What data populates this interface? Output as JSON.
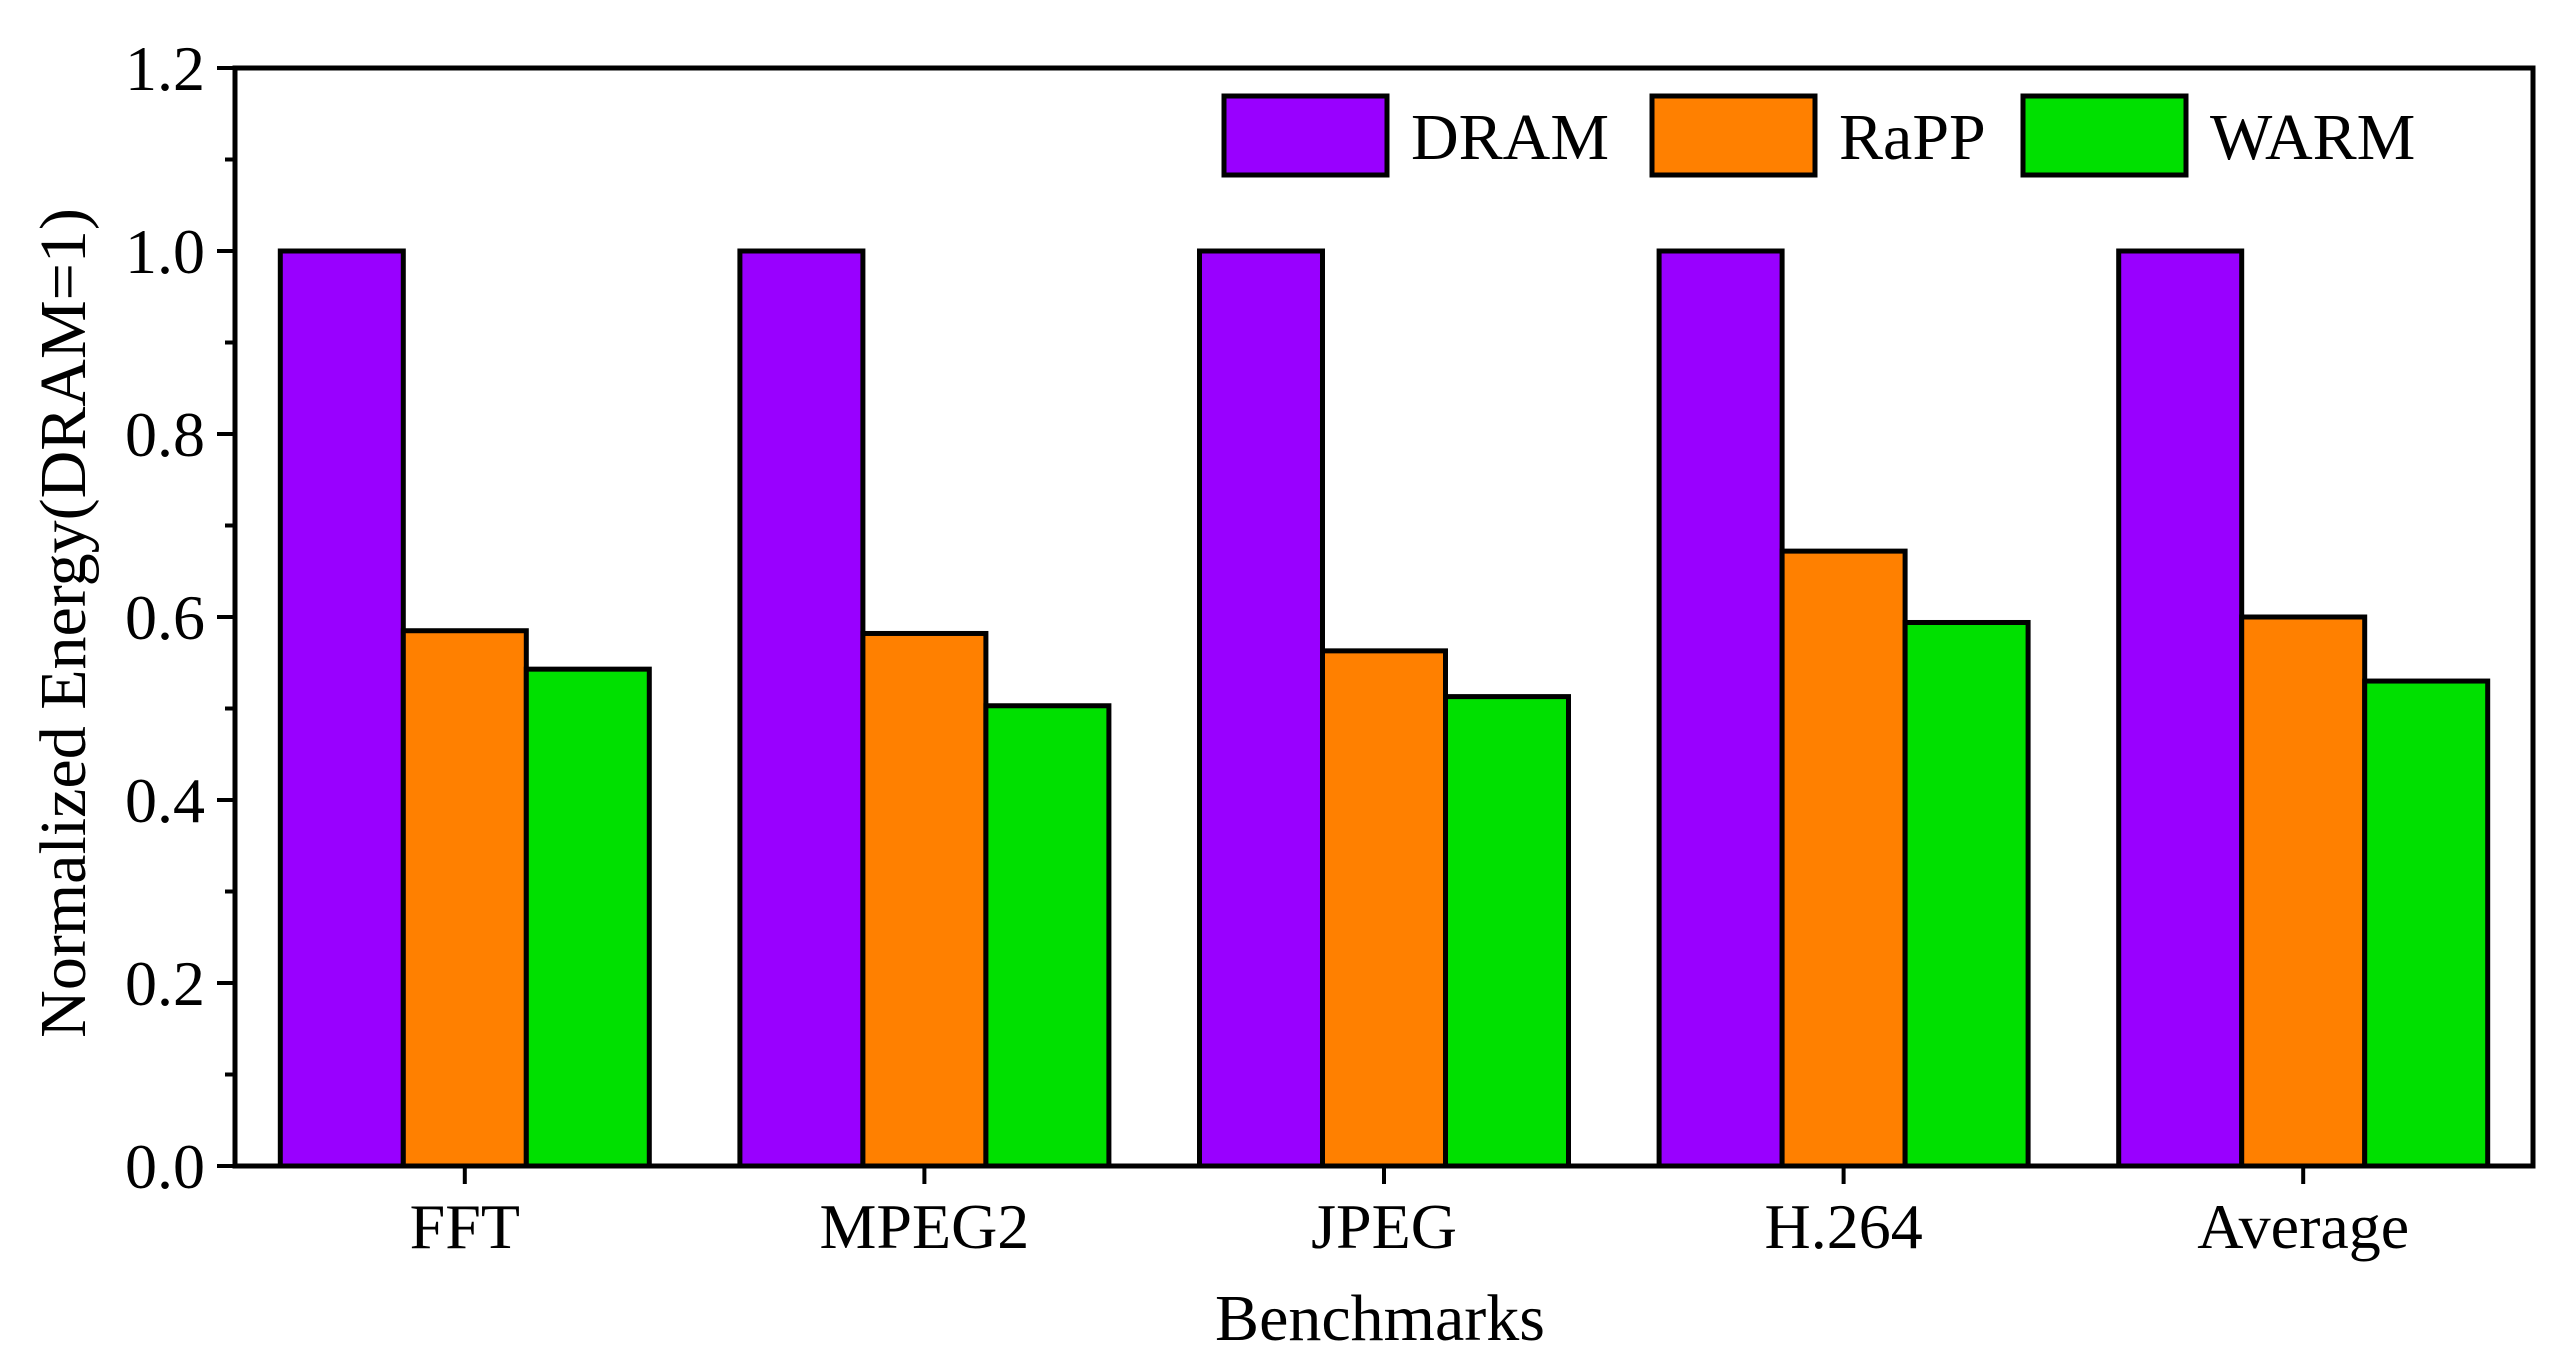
{
  "chart_data": {
    "type": "bar",
    "title": "",
    "xlabel": "Benchmarks",
    "ylabel": "Normalized Energy(DRAM=1)",
    "categories": [
      "FFT",
      "MPEG2",
      "JPEG",
      "H.264",
      "Average"
    ],
    "series": [
      {
        "name": "DRAM",
        "color": "#9900ff",
        "values": [
          1.0,
          1.0,
          1.0,
          1.0,
          1.0
        ]
      },
      {
        "name": "RaPP",
        "color": "#ff8000",
        "values": [
          0.585,
          0.582,
          0.563,
          0.672,
          0.6
        ]
      },
      {
        "name": "WARM",
        "color": "#00e000",
        "values": [
          0.543,
          0.503,
          0.513,
          0.594,
          0.53
        ]
      }
    ],
    "ylim": [
      0,
      1.2
    ],
    "yticks": [
      "0.0",
      "0.2",
      "0.4",
      "0.6",
      "0.8",
      "1.0",
      "1.2"
    ],
    "ytick_values": [
      0,
      0.2,
      0.4,
      0.6,
      0.8,
      1.0,
      1.2
    ],
    "grid": false,
    "legend_position": "top-right",
    "legend_orientation": "horizontal"
  }
}
